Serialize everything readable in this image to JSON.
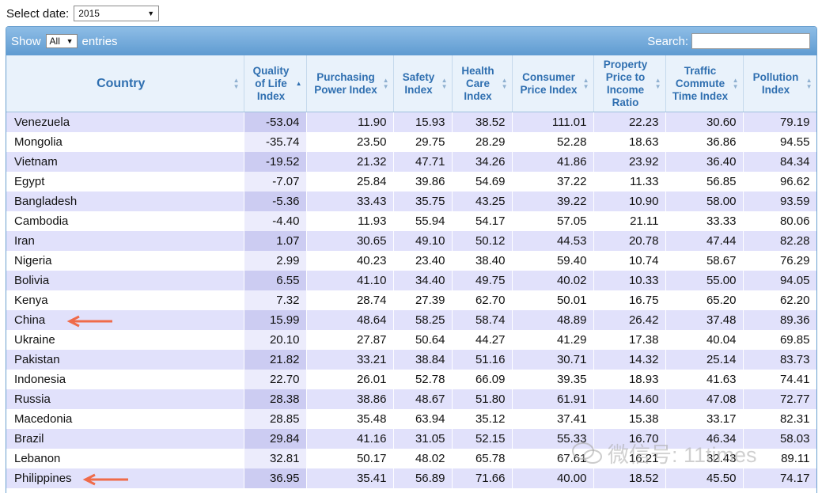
{
  "filter": {
    "label": "Select date:",
    "selected": "2015"
  },
  "toolbar": {
    "show_label": "Show",
    "show_value": "All",
    "entries_label": "entries",
    "search_label": "Search:"
  },
  "columns": [
    "Country",
    "Quality of Life Index",
    "Purchasing Power Index",
    "Safety Index",
    "Health Care Index",
    "Consumer Price Index",
    "Property Price to Income Ratio",
    "Traffic Commute Time Index",
    "Pollution Index"
  ],
  "rows": [
    [
      "Venezuela",
      "-53.04",
      "11.90",
      "15.93",
      "38.52",
      "111.01",
      "22.23",
      "30.60",
      "79.19"
    ],
    [
      "Mongolia",
      "-35.74",
      "23.50",
      "29.75",
      "28.29",
      "52.28",
      "18.63",
      "36.86",
      "94.55"
    ],
    [
      "Vietnam",
      "-19.52",
      "21.32",
      "47.71",
      "34.26",
      "41.86",
      "23.92",
      "36.40",
      "84.34"
    ],
    [
      "Egypt",
      "-7.07",
      "25.84",
      "39.86",
      "54.69",
      "37.22",
      "11.33",
      "56.85",
      "96.62"
    ],
    [
      "Bangladesh",
      "-5.36",
      "33.43",
      "35.75",
      "43.25",
      "39.22",
      "10.90",
      "58.00",
      "93.59"
    ],
    [
      "Cambodia",
      "-4.40",
      "11.93",
      "55.94",
      "54.17",
      "57.05",
      "21.11",
      "33.33",
      "80.06"
    ],
    [
      "Iran",
      "1.07",
      "30.65",
      "49.10",
      "50.12",
      "44.53",
      "20.78",
      "47.44",
      "82.28"
    ],
    [
      "Nigeria",
      "2.99",
      "40.23",
      "23.40",
      "38.40",
      "59.40",
      "10.74",
      "58.67",
      "76.29"
    ],
    [
      "Bolivia",
      "6.55",
      "41.10",
      "34.40",
      "49.75",
      "40.02",
      "10.33",
      "55.00",
      "94.05"
    ],
    [
      "Kenya",
      "7.32",
      "28.74",
      "27.39",
      "62.70",
      "50.01",
      "16.75",
      "65.20",
      "62.20"
    ],
    [
      "China",
      "15.99",
      "48.64",
      "58.25",
      "58.74",
      "48.89",
      "26.42",
      "37.48",
      "89.36"
    ],
    [
      "Ukraine",
      "20.10",
      "27.87",
      "50.64",
      "44.27",
      "41.29",
      "17.38",
      "40.04",
      "69.85"
    ],
    [
      "Pakistan",
      "21.82",
      "33.21",
      "38.84",
      "51.16",
      "30.71",
      "14.32",
      "25.14",
      "83.73"
    ],
    [
      "Indonesia",
      "22.70",
      "26.01",
      "52.78",
      "66.09",
      "39.35",
      "18.93",
      "41.63",
      "74.41"
    ],
    [
      "Russia",
      "28.38",
      "38.86",
      "48.67",
      "51.80",
      "61.91",
      "14.60",
      "47.08",
      "72.77"
    ],
    [
      "Macedonia",
      "28.85",
      "35.48",
      "63.94",
      "35.12",
      "37.41",
      "15.38",
      "33.17",
      "82.31"
    ],
    [
      "Brazil",
      "29.84",
      "41.16",
      "31.05",
      "52.15",
      "55.33",
      "16.70",
      "46.34",
      "58.03"
    ],
    [
      "Lebanon",
      "32.81",
      "50.17",
      "48.02",
      "65.78",
      "67.61",
      "16.21",
      "32.43",
      "89.11"
    ],
    [
      "Philippines",
      "36.95",
      "35.41",
      "56.89",
      "71.66",
      "40.00",
      "18.52",
      "45.50",
      "74.17"
    ]
  ],
  "watermark": {
    "text": "微信号: 11times"
  },
  "colors": {
    "header_text": "#2f6fb0",
    "arrow": "#ef6b4a",
    "odd_row": "#e1e1fb",
    "sorted_odd": "#ccccf2"
  }
}
